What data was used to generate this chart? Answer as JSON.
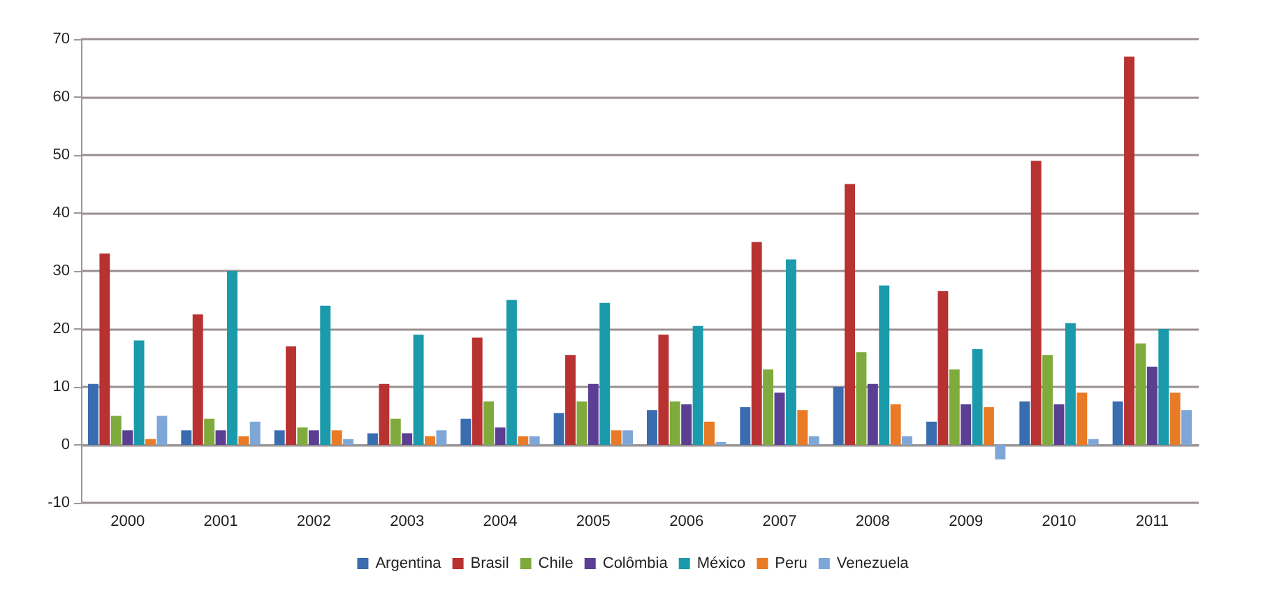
{
  "chart_data": {
    "type": "bar",
    "categories": [
      "2000",
      "2001",
      "2002",
      "2003",
      "2004",
      "2005",
      "2006",
      "2007",
      "2008",
      "2009",
      "2010",
      "2011"
    ],
    "series": [
      {
        "name": "Argentina",
        "color": "#3a6cb0",
        "values": [
          10.5,
          2.5,
          2.5,
          2,
          4.5,
          5.5,
          6,
          6.5,
          10,
          4,
          7.5,
          7.5
        ]
      },
      {
        "name": "Brasil",
        "color": "#b83232",
        "values": [
          33,
          22.5,
          17,
          10.5,
          18.5,
          15.5,
          19,
          35,
          45,
          26.5,
          49,
          67
        ]
      },
      {
        "name": "Chile",
        "color": "#7fab3c",
        "values": [
          5,
          4.5,
          3,
          4.5,
          7.5,
          7.5,
          7.5,
          13,
          16,
          13,
          15.5,
          17.5
        ]
      },
      {
        "name": "Colômbia",
        "color": "#5b3f92",
        "values": [
          2.5,
          2.5,
          2.5,
          2,
          3,
          10.5,
          7,
          9,
          10.5,
          7,
          7,
          13.5
        ]
      },
      {
        "name": "México",
        "color": "#1a9aaa",
        "values": [
          18,
          30,
          24,
          19,
          25,
          24.5,
          20.5,
          32,
          27.5,
          16.5,
          21,
          20
        ]
      },
      {
        "name": "Peru",
        "color": "#e97a26",
        "values": [
          1,
          1.5,
          2.5,
          1.5,
          1.5,
          2.5,
          4,
          6,
          7,
          6.5,
          9,
          9
        ]
      },
      {
        "name": "Venezuela",
        "color": "#7ea7d8",
        "values": [
          5,
          4,
          1,
          2.5,
          1.5,
          2.5,
          0.5,
          1.5,
          1.5,
          -2.5,
          1,
          6
        ]
      }
    ],
    "ylim": [
      -10,
      70
    ],
    "yticks": [
      -10,
      0,
      10,
      20,
      30,
      40,
      50,
      60,
      70
    ],
    "grid": "y",
    "legend": "bottom"
  }
}
